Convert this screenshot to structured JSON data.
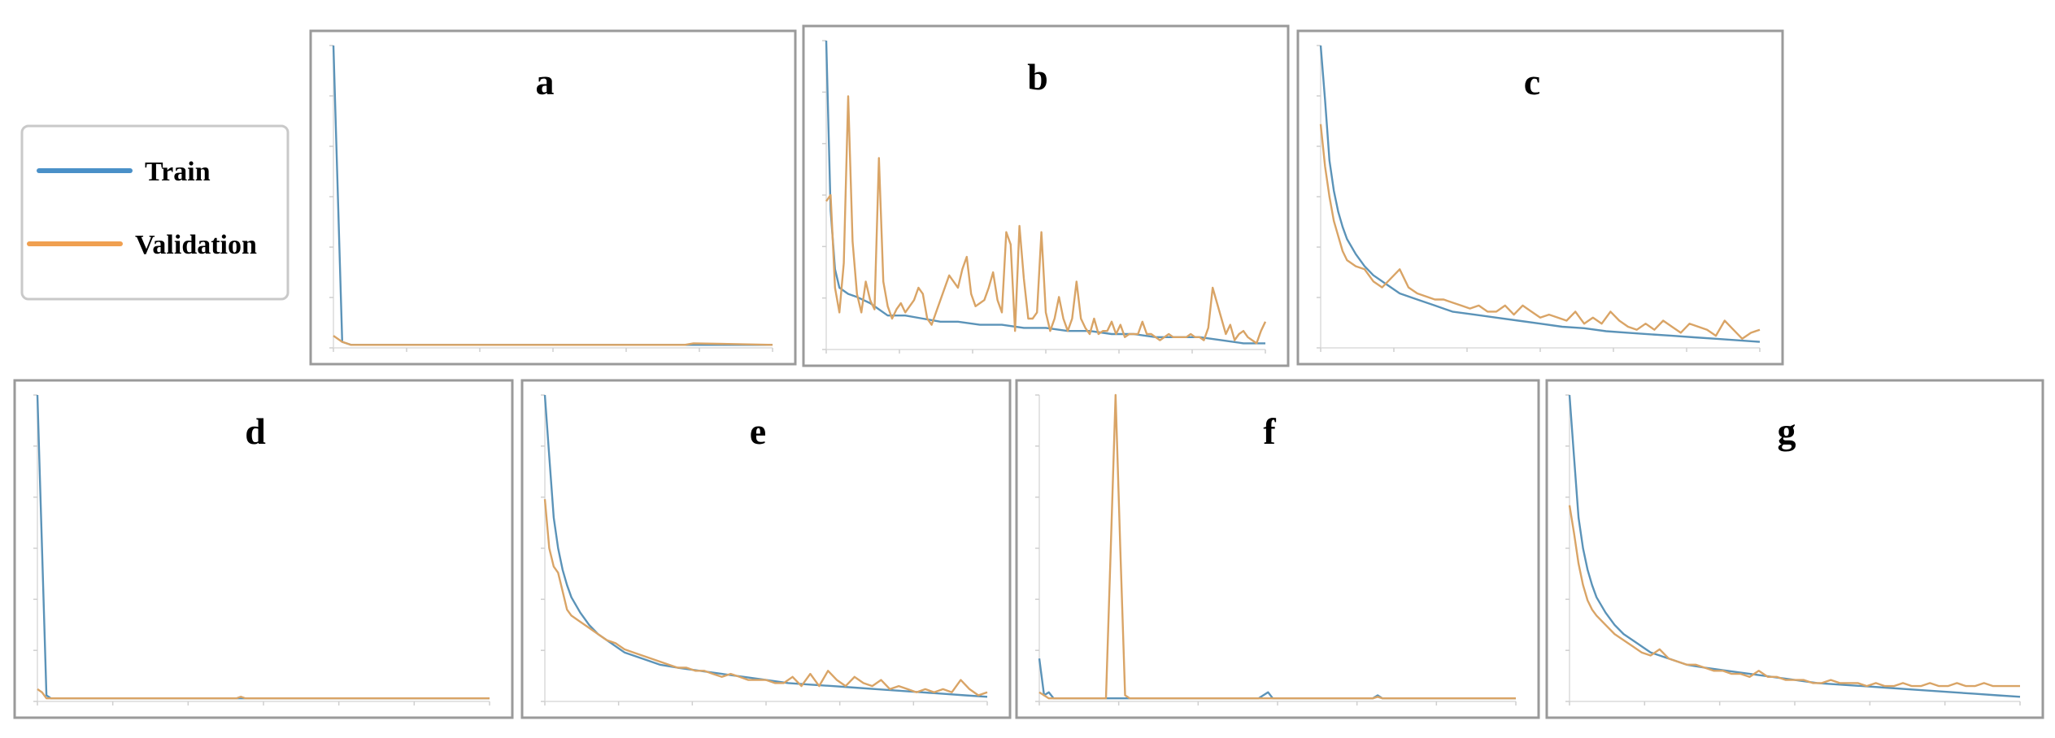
{
  "legend": {
    "entries": [
      {
        "label": "Train",
        "color": "#4a90c8"
      },
      {
        "label": "Validation",
        "color": "#f0a050"
      }
    ]
  },
  "chart_data": [
    {
      "type": "line",
      "title": "a",
      "ylim": [
        0,
        1
      ],
      "grid": false,
      "series": [
        {
          "name": "Train",
          "color": "#5b93b8",
          "x": [
            0,
            2,
            4,
            6,
            60,
            100
          ],
          "y": [
            1.0,
            0.02,
            0.01,
            0.01,
            0.01,
            0.01
          ]
        },
        {
          "name": "Validation",
          "color": "#d9a466",
          "x": [
            0,
            2,
            4,
            6,
            40,
            80,
            82,
            100
          ],
          "y": [
            0.04,
            0.02,
            0.01,
            0.01,
            0.01,
            0.01,
            0.015,
            0.01
          ]
        }
      ]
    },
    {
      "type": "line",
      "title": "b",
      "ylim": [
        0,
        1
      ],
      "grid": false,
      "series": [
        {
          "name": "Train",
          "color": "#5b93b8",
          "x": [
            0,
            1,
            2,
            3,
            5,
            7,
            10,
            14,
            18,
            22,
            26,
            30,
            35,
            40,
            45,
            50,
            55,
            60,
            65,
            70,
            75,
            80,
            85,
            90,
            95,
            100
          ],
          "y": [
            1.0,
            0.45,
            0.26,
            0.2,
            0.18,
            0.17,
            0.15,
            0.11,
            0.11,
            0.1,
            0.09,
            0.09,
            0.08,
            0.08,
            0.07,
            0.07,
            0.06,
            0.06,
            0.05,
            0.05,
            0.04,
            0.04,
            0.04,
            0.03,
            0.02,
            0.02
          ]
        },
        {
          "name": "Validation",
          "color": "#d9a466",
          "x": [
            0,
            1,
            2,
            3,
            4,
            5,
            6,
            7,
            8,
            9,
            10,
            11,
            12,
            13,
            14,
            15,
            16,
            17,
            18,
            19,
            20,
            21,
            22,
            23,
            24,
            25,
            26,
            27,
            28,
            29,
            30,
            31,
            32,
            33,
            34,
            35,
            36,
            37,
            38,
            39,
            40,
            41,
            42,
            43,
            44,
            45,
            46,
            47,
            48,
            49,
            50,
            51,
            52,
            53,
            54,
            55,
            56,
            57,
            58,
            59,
            60,
            61,
            62,
            63,
            64,
            65,
            66,
            67,
            68,
            69,
            70,
            71,
            72,
            73,
            74,
            75,
            76,
            77,
            78,
            79,
            80,
            81,
            82,
            83,
            84,
            85,
            86,
            87,
            88,
            89,
            90,
            91,
            92,
            93,
            94,
            95,
            96,
            97,
            98,
            99,
            100
          ],
          "y": [
            0.48,
            0.5,
            0.2,
            0.12,
            0.28,
            0.82,
            0.35,
            0.18,
            0.12,
            0.22,
            0.16,
            0.13,
            0.62,
            0.22,
            0.14,
            0.1,
            0.13,
            0.15,
            0.12,
            0.14,
            0.16,
            0.2,
            0.18,
            0.1,
            0.08,
            0.12,
            0.16,
            0.2,
            0.24,
            0.22,
            0.2,
            0.26,
            0.3,
            0.18,
            0.14,
            0.15,
            0.16,
            0.2,
            0.25,
            0.16,
            0.12,
            0.38,
            0.34,
            0.06,
            0.4,
            0.23,
            0.1,
            0.1,
            0.12,
            0.38,
            0.12,
            0.06,
            0.1,
            0.17,
            0.1,
            0.06,
            0.1,
            0.22,
            0.1,
            0.07,
            0.05,
            0.1,
            0.05,
            0.06,
            0.06,
            0.09,
            0.05,
            0.08,
            0.04,
            0.05,
            0.05,
            0.05,
            0.09,
            0.05,
            0.05,
            0.04,
            0.03,
            0.04,
            0.05,
            0.04,
            0.04,
            0.04,
            0.04,
            0.05,
            0.04,
            0.04,
            0.03,
            0.07,
            0.2,
            0.15,
            0.1,
            0.05,
            0.08,
            0.03,
            0.05,
            0.06,
            0.04,
            0.03,
            0.02,
            0.06,
            0.09
          ]
        }
      ]
    },
    {
      "type": "line",
      "title": "c",
      "ylim": [
        0,
        1
      ],
      "grid": false,
      "series": [
        {
          "name": "Train",
          "color": "#5b93b8",
          "x": [
            0,
            1,
            2,
            3,
            4,
            5,
            6,
            8,
            10,
            12,
            15,
            18,
            22,
            26,
            30,
            35,
            40,
            45,
            50,
            55,
            60,
            65,
            70,
            75,
            80,
            85,
            90,
            95,
            100
          ],
          "y": [
            1.0,
            0.82,
            0.62,
            0.52,
            0.45,
            0.4,
            0.36,
            0.31,
            0.27,
            0.24,
            0.21,
            0.18,
            0.16,
            0.14,
            0.12,
            0.11,
            0.1,
            0.09,
            0.08,
            0.07,
            0.065,
            0.055,
            0.05,
            0.045,
            0.04,
            0.035,
            0.03,
            0.025,
            0.02
          ]
        },
        {
          "name": "Validation",
          "color": "#d9a466",
          "x": [
            0,
            1,
            2,
            3,
            4,
            5,
            6,
            8,
            10,
            12,
            14,
            16,
            18,
            20,
            22,
            24,
            26,
            28,
            30,
            32,
            34,
            36,
            38,
            40,
            42,
            44,
            46,
            48,
            50,
            52,
            54,
            56,
            58,
            60,
            62,
            64,
            66,
            68,
            70,
            72,
            74,
            76,
            78,
            80,
            82,
            84,
            86,
            88,
            90,
            92,
            94,
            96,
            98,
            100
          ],
          "y": [
            0.74,
            0.6,
            0.5,
            0.42,
            0.37,
            0.32,
            0.29,
            0.27,
            0.26,
            0.22,
            0.2,
            0.23,
            0.26,
            0.2,
            0.18,
            0.17,
            0.16,
            0.16,
            0.15,
            0.14,
            0.13,
            0.14,
            0.12,
            0.12,
            0.14,
            0.11,
            0.14,
            0.12,
            0.1,
            0.11,
            0.1,
            0.09,
            0.12,
            0.08,
            0.1,
            0.08,
            0.12,
            0.09,
            0.07,
            0.06,
            0.08,
            0.06,
            0.09,
            0.07,
            0.05,
            0.08,
            0.07,
            0.06,
            0.04,
            0.09,
            0.06,
            0.03,
            0.05,
            0.06
          ]
        }
      ]
    },
    {
      "type": "line",
      "title": "d",
      "ylim": [
        0,
        1
      ],
      "grid": false,
      "series": [
        {
          "name": "Train",
          "color": "#5b93b8",
          "x": [
            0,
            2,
            3,
            5,
            100
          ],
          "y": [
            1.0,
            0.02,
            0.01,
            0.01,
            0.01
          ]
        },
        {
          "name": "Validation",
          "color": "#d9a466",
          "x": [
            0,
            1,
            2,
            3,
            44,
            45,
            46,
            100
          ],
          "y": [
            0.04,
            0.03,
            0.01,
            0.01,
            0.01,
            0.015,
            0.01,
            0.01
          ]
        }
      ]
    },
    {
      "type": "line",
      "title": "e",
      "ylim": [
        0,
        1
      ],
      "grid": false,
      "series": [
        {
          "name": "Train",
          "color": "#5b93b8",
          "x": [
            0,
            1,
            2,
            3,
            4,
            5,
            6,
            8,
            10,
            12,
            15,
            18,
            22,
            26,
            30,
            35,
            40,
            45,
            50,
            55,
            60,
            65,
            70,
            75,
            80,
            85,
            90,
            95,
            100
          ],
          "y": [
            1.0,
            0.8,
            0.6,
            0.5,
            0.43,
            0.38,
            0.34,
            0.29,
            0.25,
            0.22,
            0.19,
            0.16,
            0.14,
            0.12,
            0.11,
            0.1,
            0.09,
            0.08,
            0.07,
            0.06,
            0.055,
            0.05,
            0.045,
            0.04,
            0.035,
            0.03,
            0.025,
            0.02,
            0.015
          ]
        },
        {
          "name": "Validation",
          "color": "#d9a466",
          "x": [
            0,
            1,
            2,
            3,
            4,
            5,
            6,
            8,
            10,
            12,
            14,
            16,
            18,
            20,
            22,
            24,
            26,
            28,
            30,
            32,
            34,
            36,
            38,
            40,
            42,
            44,
            46,
            48,
            50,
            52,
            54,
            56,
            58,
            60,
            62,
            64,
            66,
            68,
            70,
            72,
            74,
            76,
            78,
            80,
            82,
            84,
            86,
            88,
            90,
            92,
            94,
            96,
            98,
            100
          ],
          "y": [
            0.66,
            0.5,
            0.44,
            0.42,
            0.36,
            0.3,
            0.28,
            0.26,
            0.24,
            0.22,
            0.2,
            0.19,
            0.17,
            0.16,
            0.15,
            0.14,
            0.13,
            0.12,
            0.11,
            0.11,
            0.1,
            0.1,
            0.09,
            0.08,
            0.09,
            0.08,
            0.07,
            0.07,
            0.07,
            0.06,
            0.06,
            0.08,
            0.05,
            0.09,
            0.05,
            0.1,
            0.07,
            0.05,
            0.08,
            0.06,
            0.05,
            0.07,
            0.04,
            0.05,
            0.04,
            0.03,
            0.04,
            0.03,
            0.04,
            0.03,
            0.07,
            0.04,
            0.02,
            0.03
          ]
        }
      ]
    },
    {
      "type": "line",
      "title": "f",
      "ylim": [
        0,
        1
      ],
      "grid": false,
      "series": [
        {
          "name": "Train",
          "color": "#5b93b8",
          "x": [
            0,
            1,
            2,
            3,
            5,
            20,
            30,
            40,
            46,
            47,
            48,
            49,
            50,
            55,
            70,
            71,
            72,
            73,
            100
          ],
          "y": [
            0.14,
            0.02,
            0.03,
            0.01,
            0.01,
            0.01,
            0.01,
            0.01,
            0.01,
            0.02,
            0.03,
            0.01,
            0.01,
            0.01,
            0.01,
            0.02,
            0.01,
            0.01,
            0.01
          ]
        },
        {
          "name": "Validation",
          "color": "#d9a466",
          "x": [
            0,
            1,
            2,
            4,
            10,
            13,
            14,
            15,
            16,
            17,
            18,
            19,
            20,
            25,
            40,
            70,
            71,
            72,
            100
          ],
          "y": [
            0.03,
            0.02,
            0.01,
            0.01,
            0.01,
            0.01,
            0.01,
            0.5,
            1.0,
            0.5,
            0.02,
            0.01,
            0.01,
            0.01,
            0.01,
            0.01,
            0.015,
            0.01,
            0.01
          ]
        }
      ]
    },
    {
      "type": "line",
      "title": "g",
      "ylim": [
        0,
        1
      ],
      "grid": false,
      "series": [
        {
          "name": "Train",
          "color": "#5b93b8",
          "x": [
            0,
            1,
            2,
            3,
            4,
            5,
            6,
            8,
            10,
            12,
            15,
            18,
            22,
            26,
            30,
            35,
            40,
            45,
            50,
            55,
            60,
            65,
            70,
            75,
            80,
            85,
            90,
            95,
            100
          ],
          "y": [
            1.0,
            0.8,
            0.6,
            0.5,
            0.43,
            0.38,
            0.34,
            0.29,
            0.25,
            0.22,
            0.19,
            0.16,
            0.14,
            0.12,
            0.11,
            0.1,
            0.09,
            0.08,
            0.07,
            0.06,
            0.055,
            0.05,
            0.045,
            0.04,
            0.035,
            0.03,
            0.025,
            0.02,
            0.015
          ]
        },
        {
          "name": "Validation",
          "color": "#d9a466",
          "x": [
            0,
            1,
            2,
            3,
            4,
            5,
            6,
            8,
            10,
            12,
            14,
            16,
            18,
            20,
            22,
            24,
            26,
            28,
            30,
            32,
            34,
            36,
            38,
            40,
            42,
            44,
            46,
            48,
            50,
            52,
            54,
            56,
            58,
            60,
            62,
            64,
            66,
            68,
            70,
            72,
            74,
            76,
            78,
            80,
            82,
            84,
            86,
            88,
            90,
            92,
            94,
            96,
            98,
            100
          ],
          "y": [
            0.64,
            0.55,
            0.45,
            0.38,
            0.33,
            0.3,
            0.28,
            0.25,
            0.22,
            0.2,
            0.18,
            0.16,
            0.15,
            0.17,
            0.14,
            0.13,
            0.12,
            0.12,
            0.11,
            0.1,
            0.1,
            0.09,
            0.09,
            0.08,
            0.1,
            0.08,
            0.08,
            0.07,
            0.07,
            0.07,
            0.06,
            0.06,
            0.07,
            0.06,
            0.06,
            0.06,
            0.05,
            0.06,
            0.05,
            0.05,
            0.06,
            0.05,
            0.05,
            0.06,
            0.05,
            0.05,
            0.06,
            0.05,
            0.05,
            0.06,
            0.05,
            0.05,
            0.05,
            0.05
          ]
        }
      ]
    }
  ]
}
